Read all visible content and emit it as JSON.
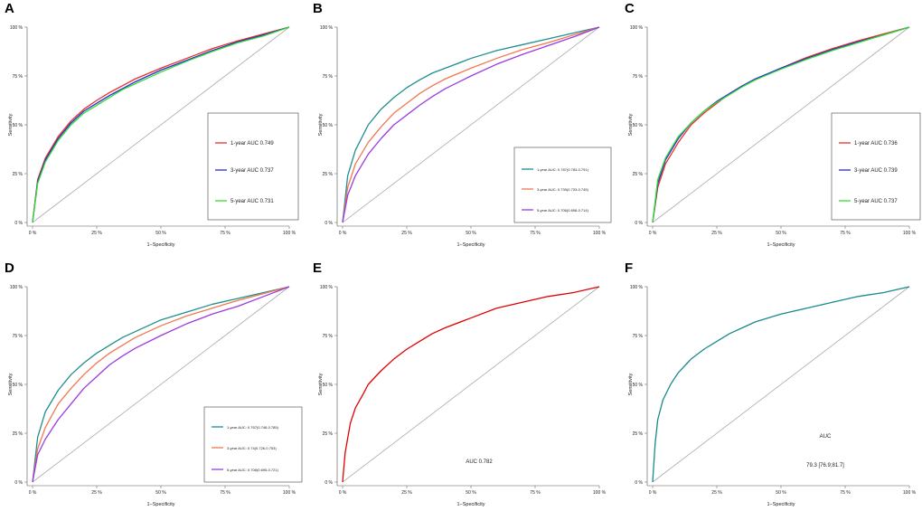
{
  "figure": {
    "tick_labels": [
      "0 %",
      "25 %",
      "50 %",
      "75 %",
      "100 %"
    ],
    "xlabel": "1−Specificity",
    "ylabel": "Sensitivity",
    "diagonal_color": "#aaaaaa"
  },
  "chart_data": [
    {
      "panel": "A",
      "type": "line",
      "series": [
        {
          "name": "1-year AUC 0.749",
          "color": "#e8312a",
          "points": [
            [
              0,
              0
            ],
            [
              0.02,
              0.22
            ],
            [
              0.05,
              0.33
            ],
            [
              0.1,
              0.44
            ],
            [
              0.15,
              0.52
            ],
            [
              0.2,
              0.58
            ],
            [
              0.25,
              0.625
            ],
            [
              0.3,
              0.665
            ],
            [
              0.35,
              0.7
            ],
            [
              0.4,
              0.735
            ],
            [
              0.5,
              0.79
            ],
            [
              0.6,
              0.84
            ],
            [
              0.7,
              0.89
            ],
            [
              0.8,
              0.93
            ],
            [
              0.9,
              0.965
            ],
            [
              1,
              1
            ]
          ]
        },
        {
          "name": "3-year AUC 0.737",
          "color": "#2a2ad8",
          "points": [
            [
              0,
              0
            ],
            [
              0.02,
              0.21
            ],
            [
              0.05,
              0.32
            ],
            [
              0.1,
              0.43
            ],
            [
              0.15,
              0.51
            ],
            [
              0.2,
              0.57
            ],
            [
              0.25,
              0.61
            ],
            [
              0.3,
              0.65
            ],
            [
              0.35,
              0.685
            ],
            [
              0.4,
              0.72
            ],
            [
              0.5,
              0.78
            ],
            [
              0.6,
              0.83
            ],
            [
              0.7,
              0.88
            ],
            [
              0.8,
              0.925
            ],
            [
              0.9,
              0.96
            ],
            [
              1,
              1
            ]
          ]
        },
        {
          "name": "5-year AUC 0.731",
          "color": "#33dd33",
          "points": [
            [
              0,
              0
            ],
            [
              0.02,
              0.2
            ],
            [
              0.05,
              0.31
            ],
            [
              0.1,
              0.42
            ],
            [
              0.15,
              0.5
            ],
            [
              0.2,
              0.56
            ],
            [
              0.25,
              0.6
            ],
            [
              0.3,
              0.64
            ],
            [
              0.35,
              0.68
            ],
            [
              0.4,
              0.71
            ],
            [
              0.5,
              0.77
            ],
            [
              0.6,
              0.825
            ],
            [
              0.7,
              0.875
            ],
            [
              0.8,
              0.92
            ],
            [
              0.9,
              0.955
            ],
            [
              1,
              1
            ]
          ]
        }
      ]
    },
    {
      "panel": "B",
      "type": "line",
      "series": [
        {
          "name": "1-year AUC: 0.787(0.783-0.791)",
          "color": "#1f8f8f",
          "points": [
            [
              0,
              0
            ],
            [
              0.02,
              0.24
            ],
            [
              0.05,
              0.37
            ],
            [
              0.1,
              0.5
            ],
            [
              0.15,
              0.58
            ],
            [
              0.2,
              0.64
            ],
            [
              0.25,
              0.69
            ],
            [
              0.3,
              0.73
            ],
            [
              0.35,
              0.765
            ],
            [
              0.4,
              0.79
            ],
            [
              0.5,
              0.84
            ],
            [
              0.6,
              0.88
            ],
            [
              0.7,
              0.91
            ],
            [
              0.8,
              0.94
            ],
            [
              0.9,
              0.97
            ],
            [
              1,
              1
            ]
          ]
        },
        {
          "name": "3-year AUC: 0.739(0.733-0.745)",
          "color": "#f07850",
          "points": [
            [
              0,
              0
            ],
            [
              0.02,
              0.18
            ],
            [
              0.05,
              0.3
            ],
            [
              0.1,
              0.41
            ],
            [
              0.15,
              0.49
            ],
            [
              0.2,
              0.56
            ],
            [
              0.25,
              0.61
            ],
            [
              0.3,
              0.66
            ],
            [
              0.35,
              0.7
            ],
            [
              0.4,
              0.735
            ],
            [
              0.5,
              0.79
            ],
            [
              0.6,
              0.84
            ],
            [
              0.7,
              0.885
            ],
            [
              0.8,
              0.92
            ],
            [
              0.9,
              0.96
            ],
            [
              1,
              1
            ]
          ]
        },
        {
          "name": "5-year AUC: 0.706(0.698-0.714)",
          "color": "#9a3be0",
          "points": [
            [
              0,
              0
            ],
            [
              0.02,
              0.14
            ],
            [
              0.05,
              0.24
            ],
            [
              0.1,
              0.35
            ],
            [
              0.15,
              0.43
            ],
            [
              0.2,
              0.5
            ],
            [
              0.25,
              0.55
            ],
            [
              0.3,
              0.6
            ],
            [
              0.35,
              0.645
            ],
            [
              0.4,
              0.685
            ],
            [
              0.5,
              0.75
            ],
            [
              0.6,
              0.81
            ],
            [
              0.7,
              0.86
            ],
            [
              0.8,
              0.905
            ],
            [
              0.9,
              0.95
            ],
            [
              1,
              1
            ]
          ]
        }
      ]
    },
    {
      "panel": "C",
      "type": "line",
      "series": [
        {
          "name": "1-year AUC 0.736",
          "color": "#e8312a",
          "points": [
            [
              0,
              0
            ],
            [
              0.02,
              0.18
            ],
            [
              0.05,
              0.3
            ],
            [
              0.1,
              0.41
            ],
            [
              0.15,
              0.5
            ],
            [
              0.2,
              0.56
            ],
            [
              0.25,
              0.61
            ],
            [
              0.3,
              0.66
            ],
            [
              0.35,
              0.7
            ],
            [
              0.4,
              0.73
            ],
            [
              0.5,
              0.79
            ],
            [
              0.6,
              0.845
            ],
            [
              0.7,
              0.89
            ],
            [
              0.8,
              0.93
            ],
            [
              0.9,
              0.965
            ],
            [
              1,
              1
            ]
          ]
        },
        {
          "name": "3-year AUC 0.739",
          "color": "#2a2ad8",
          "points": [
            [
              0,
              0
            ],
            [
              0.02,
              0.2
            ],
            [
              0.05,
              0.32
            ],
            [
              0.1,
              0.43
            ],
            [
              0.15,
              0.51
            ],
            [
              0.2,
              0.57
            ],
            [
              0.25,
              0.62
            ],
            [
              0.3,
              0.66
            ],
            [
              0.35,
              0.7
            ],
            [
              0.4,
              0.735
            ],
            [
              0.5,
              0.79
            ],
            [
              0.6,
              0.84
            ],
            [
              0.7,
              0.885
            ],
            [
              0.8,
              0.925
            ],
            [
              0.9,
              0.96
            ],
            [
              1,
              1
            ]
          ]
        },
        {
          "name": "5-year AUC 0.737",
          "color": "#33dd33",
          "points": [
            [
              0,
              0
            ],
            [
              0.02,
              0.22
            ],
            [
              0.05,
              0.33
            ],
            [
              0.1,
              0.44
            ],
            [
              0.15,
              0.51
            ],
            [
              0.2,
              0.57
            ],
            [
              0.25,
              0.615
            ],
            [
              0.3,
              0.655
            ],
            [
              0.35,
              0.695
            ],
            [
              0.4,
              0.73
            ],
            [
              0.5,
              0.785
            ],
            [
              0.6,
              0.835
            ],
            [
              0.7,
              0.88
            ],
            [
              0.8,
              0.92
            ],
            [
              0.9,
              0.96
            ],
            [
              1,
              1
            ]
          ]
        }
      ]
    },
    {
      "panel": "D",
      "type": "line",
      "series": [
        {
          "name": "1-year AUC: 0.767(0.748-0.785)",
          "color": "#1f8f8f",
          "points": [
            [
              0,
              0
            ],
            [
              0.02,
              0.23
            ],
            [
              0.05,
              0.36
            ],
            [
              0.1,
              0.47
            ],
            [
              0.15,
              0.55
            ],
            [
              0.2,
              0.61
            ],
            [
              0.25,
              0.66
            ],
            [
              0.3,
              0.7
            ],
            [
              0.35,
              0.74
            ],
            [
              0.4,
              0.77
            ],
            [
              0.5,
              0.83
            ],
            [
              0.6,
              0.87
            ],
            [
              0.7,
              0.91
            ],
            [
              0.8,
              0.94
            ],
            [
              0.9,
              0.97
            ],
            [
              1,
              1
            ]
          ]
        },
        {
          "name": "3-year AUC: 0.74(0.726-0.753)",
          "color": "#f07850",
          "points": [
            [
              0,
              0
            ],
            [
              0.02,
              0.17
            ],
            [
              0.05,
              0.28
            ],
            [
              0.1,
              0.4
            ],
            [
              0.15,
              0.48
            ],
            [
              0.2,
              0.55
            ],
            [
              0.25,
              0.61
            ],
            [
              0.3,
              0.66
            ],
            [
              0.35,
              0.7
            ],
            [
              0.4,
              0.74
            ],
            [
              0.5,
              0.8
            ],
            [
              0.6,
              0.85
            ],
            [
              0.7,
              0.89
            ],
            [
              0.8,
              0.93
            ],
            [
              0.9,
              0.965
            ],
            [
              1,
              1
            ]
          ]
        },
        {
          "name": "5-year AUC: 0.708(0.695-0.721)",
          "color": "#9a3be0",
          "points": [
            [
              0,
              0
            ],
            [
              0.02,
              0.14
            ],
            [
              0.05,
              0.22
            ],
            [
              0.1,
              0.32
            ],
            [
              0.15,
              0.4
            ],
            [
              0.2,
              0.48
            ],
            [
              0.25,
              0.54
            ],
            [
              0.3,
              0.6
            ],
            [
              0.35,
              0.645
            ],
            [
              0.4,
              0.685
            ],
            [
              0.5,
              0.75
            ],
            [
              0.6,
              0.81
            ],
            [
              0.7,
              0.86
            ],
            [
              0.8,
              0.9
            ],
            [
              0.9,
              0.95
            ],
            [
              1,
              1
            ]
          ]
        }
      ]
    },
    {
      "panel": "E",
      "type": "line",
      "annotation": "AUC 0.782",
      "series": [
        {
          "name": "AUC 0.782",
          "color": "#e00000",
          "points": [
            [
              0,
              0
            ],
            [
              0.01,
              0.15
            ],
            [
              0.03,
              0.3
            ],
            [
              0.05,
              0.38
            ],
            [
              0.08,
              0.45
            ],
            [
              0.1,
              0.5
            ],
            [
              0.15,
              0.57
            ],
            [
              0.2,
              0.63
            ],
            [
              0.25,
              0.68
            ],
            [
              0.3,
              0.72
            ],
            [
              0.35,
              0.76
            ],
            [
              0.4,
              0.79
            ],
            [
              0.5,
              0.84
            ],
            [
              0.6,
              0.89
            ],
            [
              0.7,
              0.92
            ],
            [
              0.8,
              0.95
            ],
            [
              0.9,
              0.97
            ],
            [
              1,
              1
            ]
          ]
        }
      ]
    },
    {
      "panel": "F",
      "type": "line",
      "annotation_title": "AUC",
      "annotation": "79.3 [76.9;81.7]",
      "series": [
        {
          "name": "AUC 79.3 [76.9;81.7]",
          "color": "#1a8a8a",
          "points": [
            [
              0,
              0
            ],
            [
              0.01,
              0.2
            ],
            [
              0.02,
              0.32
            ],
            [
              0.04,
              0.42
            ],
            [
              0.07,
              0.5
            ],
            [
              0.1,
              0.56
            ],
            [
              0.15,
              0.63
            ],
            [
              0.2,
              0.68
            ],
            [
              0.25,
              0.72
            ],
            [
              0.3,
              0.76
            ],
            [
              0.35,
              0.79
            ],
            [
              0.4,
              0.82
            ],
            [
              0.5,
              0.86
            ],
            [
              0.6,
              0.89
            ],
            [
              0.7,
              0.92
            ],
            [
              0.8,
              0.95
            ],
            [
              0.9,
              0.97
            ],
            [
              1,
              1
            ]
          ]
        }
      ]
    }
  ]
}
